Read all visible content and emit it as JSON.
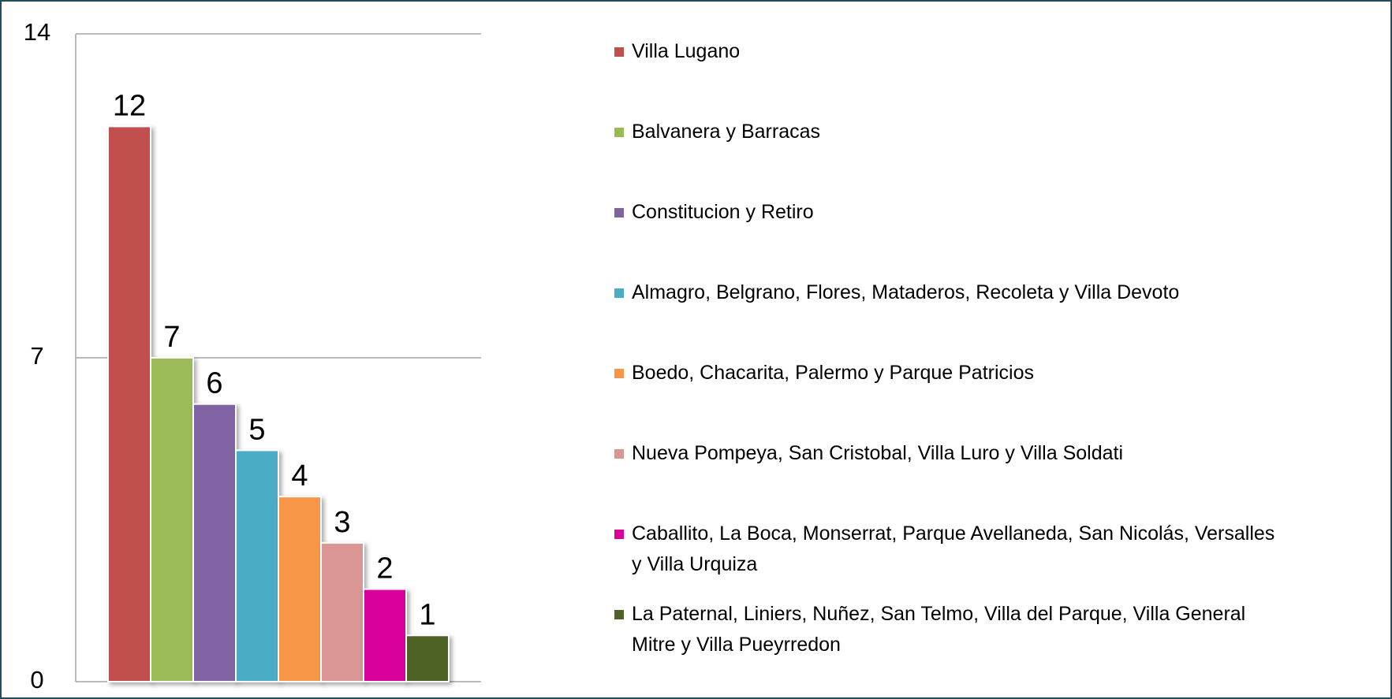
{
  "chart_data": {
    "type": "bar",
    "categories": [
      "Villa Lugano",
      "Balvanera y Barracas",
      "Constitucion y Retiro",
      "Almagro, Belgrano, Flores, Mataderos, Recoleta y Villa Devoto",
      "Boedo, Chacarita, Palermo y Parque Patricios",
      "Nueva Pompeya, San Cristobal, Villa Luro y Villa Soldati",
      "Caballito, La Boca, Monserrat, Parque Avellaneda, San Nicolás, Versalles y Villa Urquiza",
      "La Paternal, Liniers, Nuñez, San Telmo, Villa del Parque, Villa General Mitre y Villa Pueyrredon"
    ],
    "values": [
      12,
      7,
      6,
      5,
      4,
      3,
      2,
      1
    ],
    "colors": [
      "#c0504d",
      "#9bbb59",
      "#8064a2",
      "#4bacc6",
      "#f79646",
      "#d99694",
      "#d9009b",
      "#4f6228"
    ],
    "ylim": [
      0,
      14
    ],
    "yticks": [
      0,
      7,
      14
    ],
    "grid": true,
    "legend": "right"
  }
}
